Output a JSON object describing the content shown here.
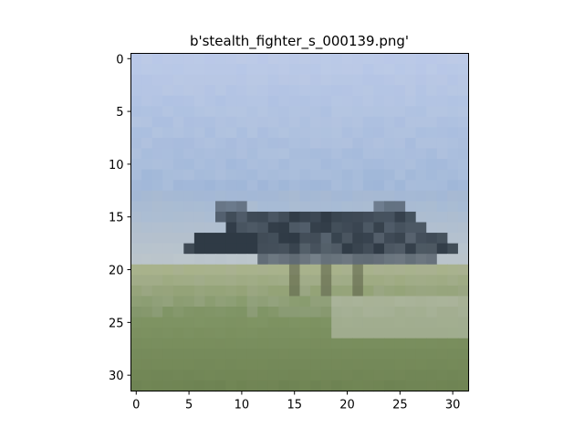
{
  "figure": {
    "title": "b'stealth_fighter_s_000139.png'",
    "image_description": "pixelated 32x32 photo of a dark stealth fighter jet on a green airfield under a pale blue sky",
    "x_ticks": [
      "0",
      "5",
      "10",
      "15",
      "20",
      "25",
      "30"
    ],
    "y_ticks": [
      "0",
      "5",
      "10",
      "15",
      "20",
      "25",
      "30"
    ],
    "image_size": [
      32,
      32
    ],
    "colors": {
      "sky_top": "#b9c8e8",
      "sky_mid": "#9fb6d8",
      "horizon": "#bcc6cc",
      "jet": "#2f3a45",
      "ground_light": "#a8b28a",
      "ground": "#7f9464",
      "ground_dark": "#6b8050"
    }
  }
}
